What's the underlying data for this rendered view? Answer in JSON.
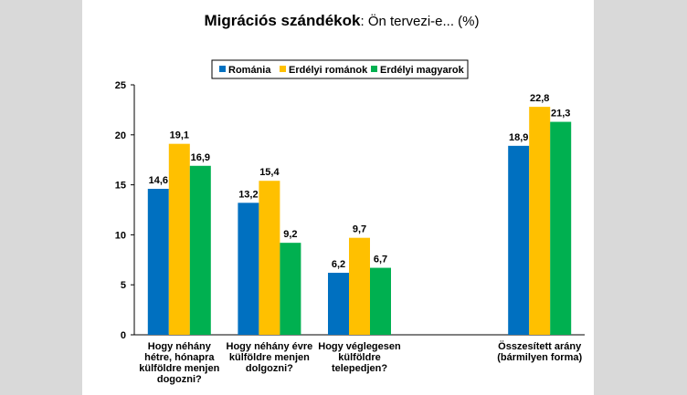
{
  "chart_data": {
    "type": "bar",
    "title": "Migrációs szándékok",
    "subtitle": ": Ön tervezi-e... (%)",
    "ylim": [
      0,
      25
    ],
    "yticks": [
      "0",
      "5",
      "10",
      "15",
      "20",
      "25"
    ],
    "grid": false,
    "legend_position": "top",
    "categories": [
      [
        "Hogy néhány",
        "hétre, hónapra",
        "külföldre menjen",
        "dogozni?"
      ],
      [
        "Hogy néhány évre",
        "külföldre menjen",
        "dolgozni?"
      ],
      [
        "Hogy véglegesen",
        "külföldre",
        "telepedjen?"
      ],
      [],
      [
        "Összesített arány",
        "(bármilyen forma)"
      ]
    ],
    "series": [
      {
        "name": "Románia",
        "color": "#0070C0",
        "values": [
          14.6,
          13.2,
          6.2,
          null,
          18.9
        ],
        "labels": [
          "14,6",
          "13,2",
          "6,2",
          "",
          "18,9"
        ]
      },
      {
        "name": "Erdélyi románok",
        "color": "#FFC000",
        "values": [
          19.1,
          15.4,
          9.7,
          null,
          22.8
        ],
        "labels": [
          "19,1",
          "15,4",
          "9,7",
          "",
          "22,8"
        ]
      },
      {
        "name": "Erdélyi magyarok",
        "color": "#00B050",
        "values": [
          16.9,
          9.2,
          6.7,
          null,
          21.3
        ],
        "labels": [
          "16,9",
          "9,2",
          "6,7",
          "",
          "21,3"
        ]
      }
    ]
  }
}
